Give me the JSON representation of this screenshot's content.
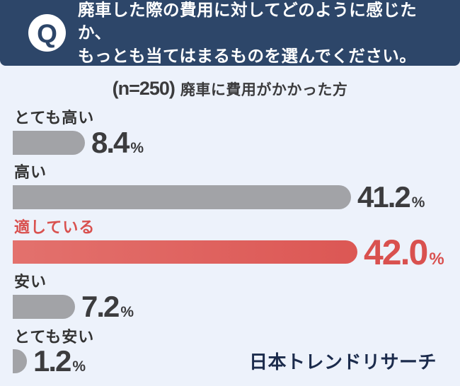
{
  "header": {
    "q_icon": "Q",
    "question_line1": "廃車した際の費用に対してどのように感じたか、",
    "question_line2": "もっとも当てはまるものを選んでください。"
  },
  "subtitle": {
    "sample": "(n=250)",
    "description": "廃車に費用がかかった方"
  },
  "chart_data": {
    "type": "bar",
    "orientation": "horizontal",
    "title": "(n=250) 廃車に費用がかかった方",
    "unit": "%",
    "categories": [
      "とても高い",
      "高い",
      "適している",
      "安い",
      "とても安い"
    ],
    "values": [
      8.4,
      41.2,
      42.0,
      7.2,
      1.2
    ],
    "highlight_category": "適している",
    "highlight_index": 2,
    "rows": [
      {
        "label": "とても高い",
        "value": 8.4,
        "display": "8.4"
      },
      {
        "label": "高い",
        "value": 41.2,
        "display": "41.2"
      },
      {
        "label": "適している",
        "value": 42.0,
        "display": "42.0"
      },
      {
        "label": "安い",
        "value": 7.2,
        "display": "7.2"
      },
      {
        "label": "とても安い",
        "value": 1.2,
        "display": "1.2"
      }
    ],
    "colors": {
      "header_background": "#2d4669",
      "page_background": "#edf2fb",
      "bar_default": "#a2a3a7",
      "bar_highlight": "#dc5754",
      "label_default": "#333333",
      "label_highlight": "#d9514f",
      "logo_navy": "#1b2b4c"
    }
  },
  "footer": {
    "logo_text": "日本トレンドリサーチ"
  }
}
